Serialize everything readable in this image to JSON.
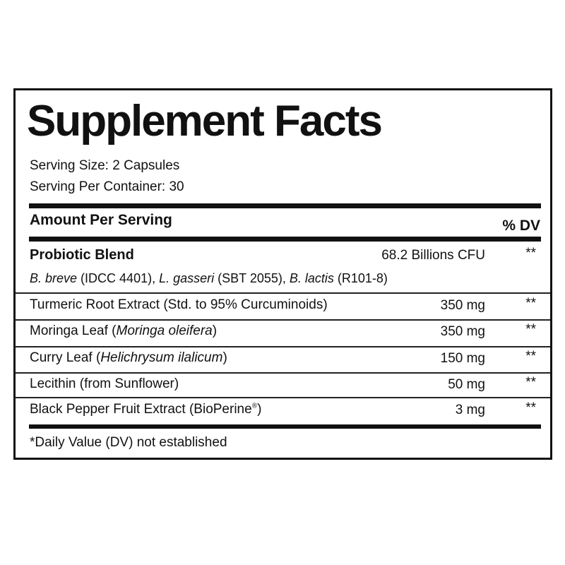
{
  "title": "Supplement Facts",
  "serving_size": "Serving Size: 2 Capsules",
  "servings_per_container": "Serving Per Container: 30",
  "header": {
    "amount_per_serving": "Amount Per Serving",
    "dv": "% DV"
  },
  "blend": {
    "name": "Probiotic Blend",
    "amount": "68.2 Billions CFU",
    "dv": "**",
    "strains": [
      {
        "name": "B. breve",
        "code": " (IDCC 4401), "
      },
      {
        "name": "L. gasseri",
        "code": " (SBT 2055), "
      },
      {
        "name": "B. lactis",
        "code": " (R101-8)"
      }
    ]
  },
  "ingredients": [
    {
      "name": "Turmeric Root Extract (Std. to 95% Curcuminoids)",
      "latin": "",
      "close": "",
      "amount": "350 mg",
      "dv": "**"
    },
    {
      "name": "Moringa Leaf (",
      "latin": "Moringa oleifera",
      "close": ")",
      "amount": "350 mg",
      "dv": "**"
    },
    {
      "name": "Curry Leaf (",
      "latin": "Helichrysum ilalicum",
      "close": ")",
      "amount": "150 mg",
      "dv": "**"
    },
    {
      "name": "Lecithin (from Sunflower)",
      "latin": "",
      "close": "",
      "amount": "50 mg",
      "dv": "**"
    },
    {
      "name": "Black Pepper Fruit Extract (BioPerine",
      "latin": "",
      "close": "",
      "sup": "®",
      "close2": ")",
      "amount": "3 mg",
      "dv": "**"
    }
  ],
  "footnote": "*Daily Value (DV) not established"
}
